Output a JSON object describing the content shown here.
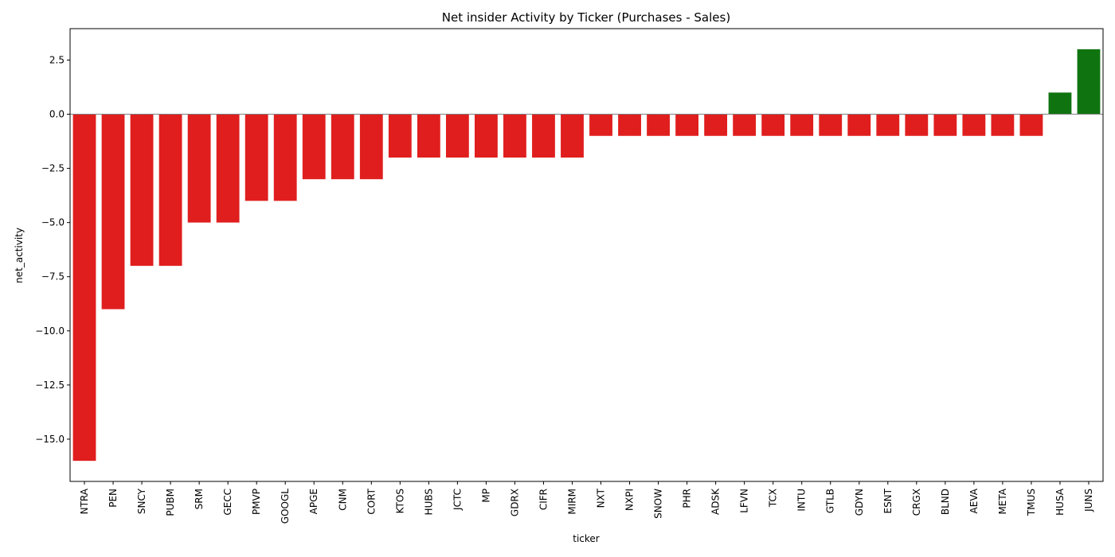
{
  "chart_data": {
    "type": "bar",
    "title": "Net insider Activity by Ticker (Purchases - Sales)",
    "xlabel": "ticker",
    "ylabel": "net_activity",
    "ylim": [
      -16.95,
      3.95
    ],
    "yticks": [
      2.5,
      0.0,
      -2.5,
      -5.0,
      -7.5,
      -10.0,
      -12.5,
      -15.0
    ],
    "ytick_labels": [
      "2.5",
      "0.0",
      "−2.5",
      "−5.0",
      "−7.5",
      "−10.0",
      "−12.5",
      "−15.0"
    ],
    "grid": false,
    "categories": [
      "NTRA",
      "PEN",
      "SNCY",
      "PUBM",
      "SRM",
      "GECC",
      "PMVP",
      "GOOGL",
      "APGE",
      "CNM",
      "CORT",
      "KTOS",
      "HUBS",
      "JCTC",
      "MP",
      "GDRX",
      "CIFR",
      "MIRM",
      "NXT",
      "NXPI",
      "SNOW",
      "PHR",
      "ADSK",
      "LFVN",
      "TCX",
      "INTU",
      "GTLB",
      "GDYN",
      "ESNT",
      "CRGX",
      "BLND",
      "AEVA",
      "META",
      "TMUS",
      "HUSA",
      "JUNS"
    ],
    "values": [
      -16,
      -9,
      -7,
      -7,
      -5,
      -5,
      -4,
      -4,
      -3,
      -3,
      -3,
      -2,
      -2,
      -2,
      -2,
      -2,
      -2,
      -2,
      -1,
      -1,
      -1,
      -1,
      -1,
      -1,
      -1,
      -1,
      -1,
      -1,
      -1,
      -1,
      -1,
      -1,
      -1,
      -1,
      1,
      3
    ],
    "colors": {
      "negative": "#e01e1e",
      "positive": "#0f7410"
    }
  }
}
